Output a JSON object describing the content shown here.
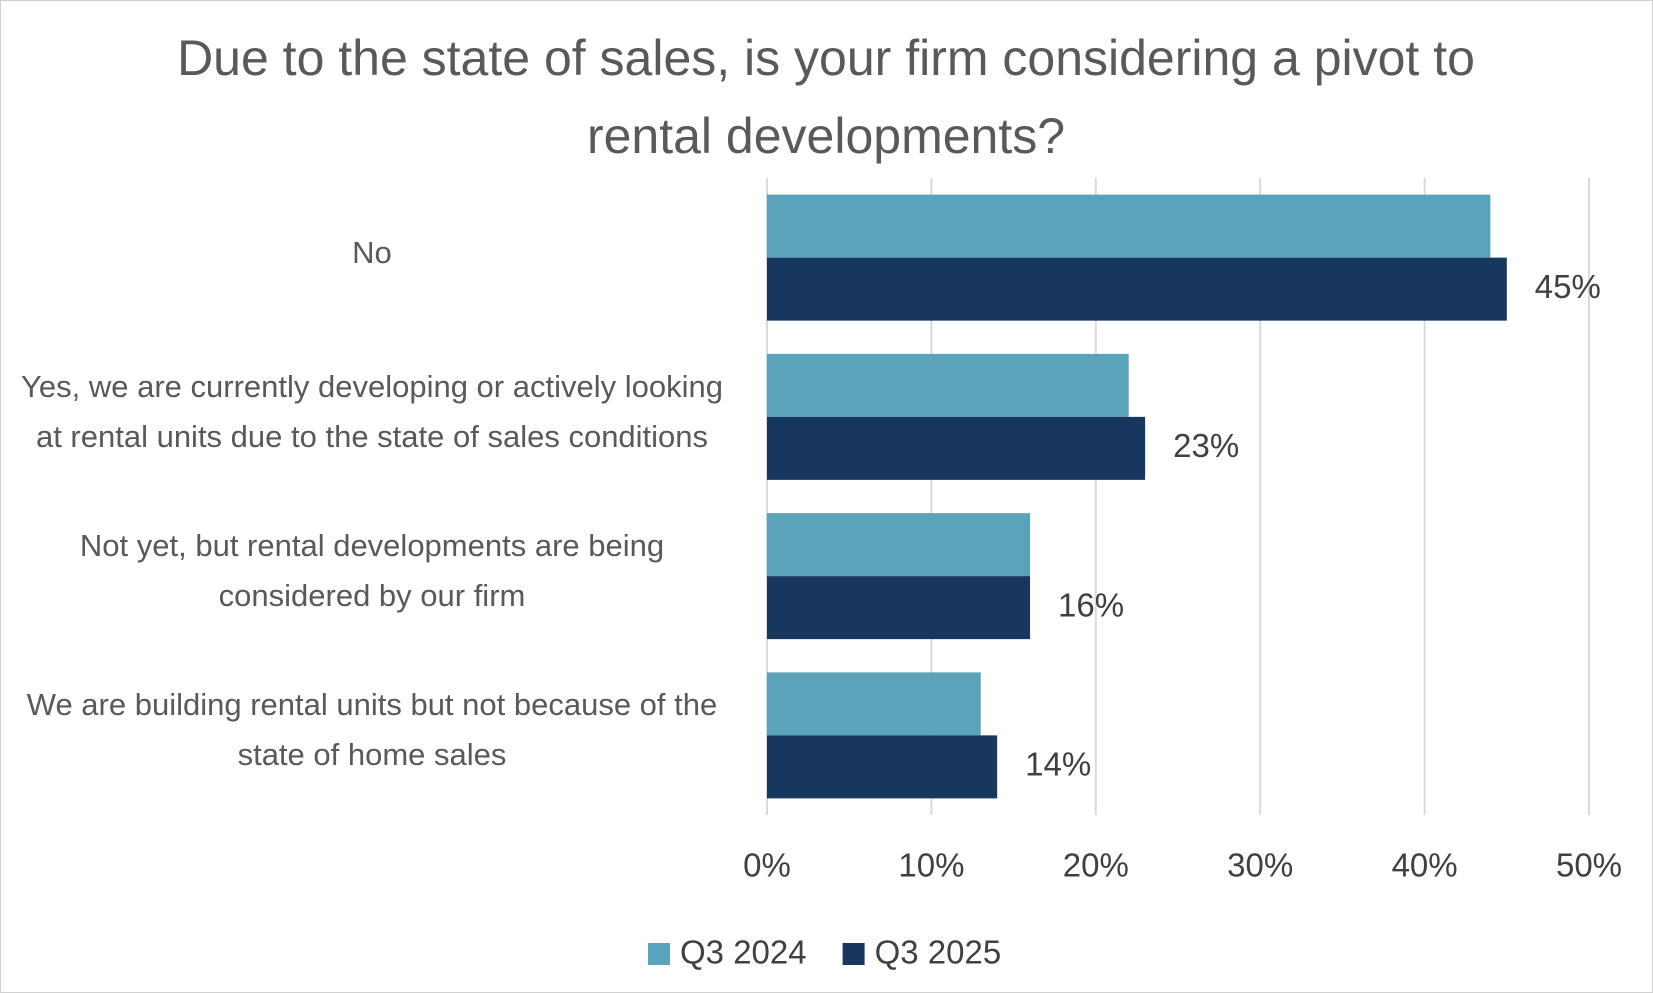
{
  "chart_data": {
    "type": "bar",
    "orientation": "horizontal",
    "title": "Due to the state of sales, is your firm considering a pivot to rental developments?",
    "categories": [
      "No",
      "Yes, we are currently developing or actively looking at rental units due to the state of sales conditions",
      "Not yet, but rental developments are being considered by our firm",
      "We are building rental units but not because of the state of home sales"
    ],
    "series": [
      {
        "name": "Q3 2024",
        "color": "#5ba3ba",
        "values": [
          44,
          22,
          16,
          13
        ]
      },
      {
        "name": "Q3 2025",
        "color": "#17375e",
        "values": [
          45,
          23,
          16,
          14
        ],
        "value_labels": [
          "45%",
          "23%",
          "16%",
          "14%"
        ]
      }
    ],
    "xlim": [
      0,
      50
    ],
    "xticks": [
      {
        "value": 0,
        "label": "0%"
      },
      {
        "value": 10,
        "label": "10%"
      },
      {
        "value": 20,
        "label": "20%"
      },
      {
        "value": 30,
        "label": "30%"
      },
      {
        "value": 40,
        "label": "40%"
      },
      {
        "value": 50,
        "label": "50%"
      }
    ],
    "grid": true,
    "legend": "bottom"
  }
}
